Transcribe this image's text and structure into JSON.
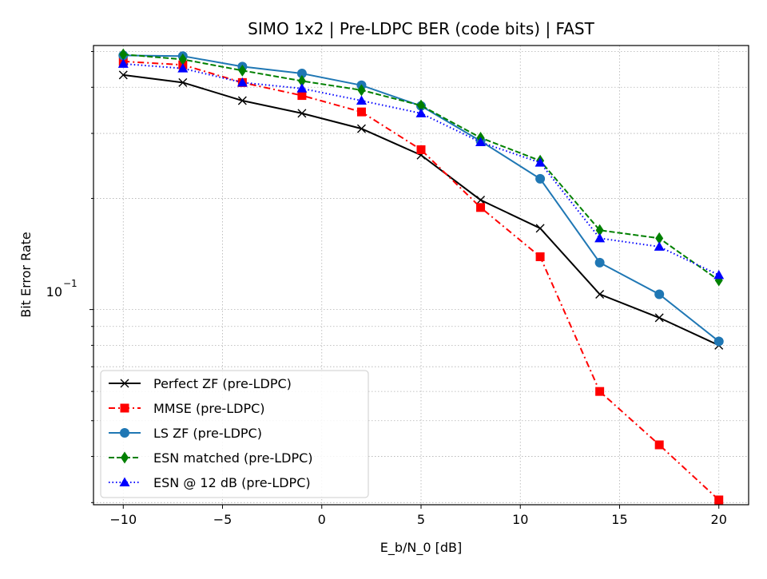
{
  "chart_data": {
    "type": "line",
    "title": "SIMO 1x2 | Pre-LDPC BER (code bits) | FAST",
    "xlabel": "E_b/N_0 [dB]",
    "ylabel": "Bit Error Rate",
    "x_scale": "linear",
    "y_scale": "log",
    "xlim": [
      -11.5,
      21.5
    ],
    "ylim": [
      0.0296,
      0.519
    ],
    "x_ticks": [
      -10,
      -5,
      0,
      5,
      10,
      15,
      20
    ],
    "x_tick_labels": [
      "−10",
      "−5",
      "0",
      "5",
      "10",
      "15",
      "20"
    ],
    "y_major_ticks": [
      0.1
    ],
    "y_minor_ticks": [
      0.03,
      0.04,
      0.05,
      0.06,
      0.07,
      0.08,
      0.09,
      0.2,
      0.3,
      0.4,
      0.5
    ],
    "y_tick_label_base": "10",
    "y_tick_label_exp": "−1",
    "grid": true,
    "legend_position": "lower-left",
    "x": [
      -10,
      -7,
      -4,
      -1,
      2,
      5,
      8,
      11,
      14,
      17,
      20
    ],
    "series": [
      {
        "name": "Perfect ZF (pre-LDPC)",
        "color": "#000000",
        "marker": "x",
        "dash": "solid",
        "values": [
          0.432,
          0.412,
          0.368,
          0.34,
          0.309,
          0.262,
          0.198,
          0.166,
          0.11,
          0.095,
          0.08
        ]
      },
      {
        "name": "MMSE (pre-LDPC)",
        "color": "#ff0000",
        "marker": "square",
        "dash": "dashdot",
        "values": [
          0.47,
          0.46,
          0.412,
          0.38,
          0.343,
          0.271,
          0.189,
          0.139,
          0.06,
          0.043,
          0.0305
        ]
      },
      {
        "name": "LS ZF (pre-LDPC)",
        "color": "#1f77b4",
        "marker": "circle",
        "dash": "solid",
        "values": [
          0.488,
          0.486,
          0.455,
          0.436,
          0.405,
          0.356,
          0.286,
          0.226,
          0.134,
          0.11,
          0.082
        ]
      },
      {
        "name": "ESN matched (pre-LDPC)",
        "color": "#008000",
        "marker": "diamond",
        "dash": "dashed",
        "values": [
          0.491,
          0.476,
          0.444,
          0.416,
          0.393,
          0.357,
          0.292,
          0.253,
          0.164,
          0.156,
          0.12
        ]
      },
      {
        "name": "ESN @ 12 dB (pre-LDPC)",
        "color": "#0000ff",
        "marker": "triangle",
        "dash": "dotted",
        "values": [
          0.463,
          0.45,
          0.412,
          0.397,
          0.368,
          0.34,
          0.284,
          0.25,
          0.156,
          0.148,
          0.124
        ]
      }
    ]
  }
}
